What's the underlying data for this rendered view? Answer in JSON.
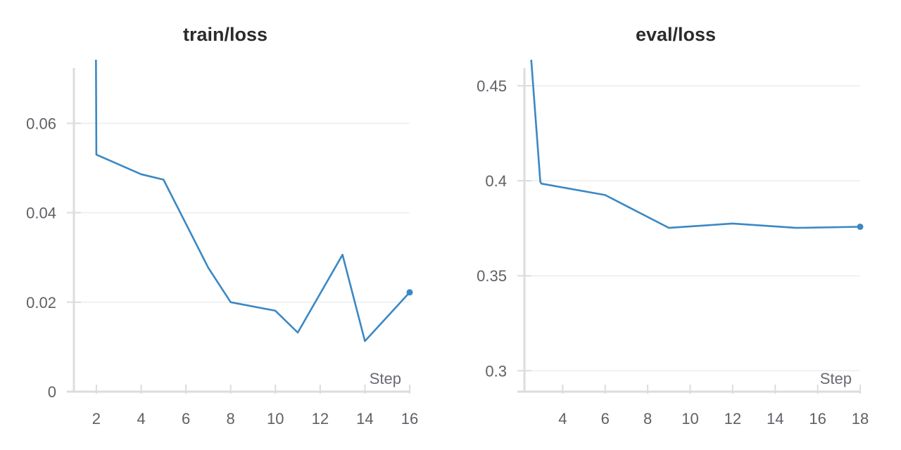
{
  "charts": [
    {
      "id": "train",
      "title": "train/loss"
    },
    {
      "id": "eval",
      "title": "eval/loss"
    }
  ],
  "chart_data": [
    {
      "type": "line",
      "title": "train/loss",
      "xlabel": "Step",
      "ylabel": "",
      "xlim": [
        1.5,
        16
      ],
      "ylim": [
        0,
        0.0742
      ],
      "x_ticks": [
        2,
        4,
        6,
        8,
        10,
        12,
        14,
        16
      ],
      "x_tick_labels": [
        "2",
        "4",
        "6",
        "8",
        "10",
        "12",
        "14",
        "16"
      ],
      "y_ticks": [
        0,
        0.02,
        0.04,
        0.06
      ],
      "y_tick_labels": [
        "0",
        "0.02",
        "0.04",
        "0.06"
      ],
      "grid": true,
      "legend": "none",
      "color": "#3b88c4",
      "series": [
        {
          "x": [
            1.98,
            2,
            4,
            5,
            7,
            8,
            10,
            11,
            13,
            14,
            16
          ],
          "y": [
            0.0755,
            0.053,
            0.0486,
            0.0474,
            0.0277,
            0.02,
            0.0181,
            0.0132,
            0.0306,
            0.0113,
            0.0222
          ]
        }
      ]
    },
    {
      "type": "line",
      "title": "eval/loss",
      "xlabel": "Step",
      "ylabel": "",
      "xlim": [
        2.2,
        18
      ],
      "ylim": [
        0.289,
        0.4637
      ],
      "x_ticks": [
        4,
        6,
        8,
        10,
        12,
        14,
        16,
        18
      ],
      "x_tick_labels": [
        "4",
        "6",
        "8",
        "10",
        "12",
        "14",
        "16",
        "18"
      ],
      "y_ticks": [
        0.3,
        0.35,
        0.4,
        0.45
      ],
      "y_tick_labels": [
        "0.3",
        "0.35",
        "0.4",
        "0.45"
      ],
      "grid": true,
      "legend": "none",
      "color": "#3b88c4",
      "series": [
        {
          "x": [
            2.5,
            2.95,
            3,
            6,
            9,
            12,
            15,
            18
          ],
          "y": [
            0.4667,
            0.3995,
            0.3985,
            0.3925,
            0.3752,
            0.3775,
            0.3752,
            0.3758
          ]
        }
      ]
    }
  ]
}
